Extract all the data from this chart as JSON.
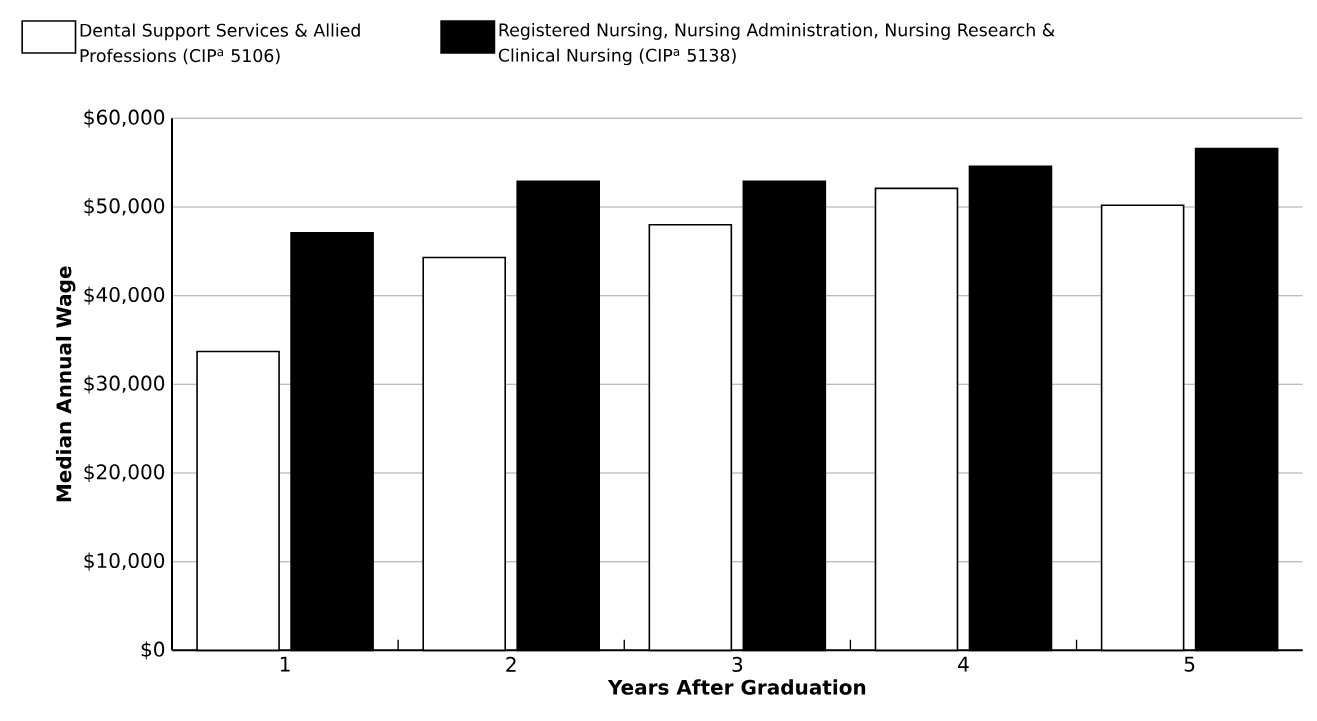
{
  "chart_data": {
    "type": "bar",
    "xlabel": "Years After Graduation",
    "ylabel": "Median Annual Wage",
    "categories": [
      "1",
      "2",
      "3",
      "4",
      "5"
    ],
    "series": [
      {
        "name": "Dental Support Services & Allied Professions (CIP$^{a}$ 5106)",
        "color": "#ffffff",
        "values": [
          33700,
          44300,
          48000,
          52100,
          50200
        ]
      },
      {
        "name": "Registered Nursing, Nursing Administration, Nursing Research & Clinical Nursing (CIP$^{a}$ 5138)",
        "color": "#000000",
        "values": [
          47100,
          52900,
          52900,
          54600,
          56600
        ]
      }
    ],
    "ylim": [
      0,
      60000
    ],
    "yticks": [
      {
        "value": 0,
        "label": "$0"
      },
      {
        "value": 10000,
        "label": "$10,000"
      },
      {
        "value": 20000,
        "label": "$20,000"
      },
      {
        "value": 30000,
        "label": "$30,000"
      },
      {
        "value": 40000,
        "label": "$40,000"
      },
      {
        "value": 50000,
        "label": "$50,000"
      },
      {
        "value": 60000,
        "label": "$60,000"
      }
    ],
    "grid": "y",
    "legend": "top"
  }
}
